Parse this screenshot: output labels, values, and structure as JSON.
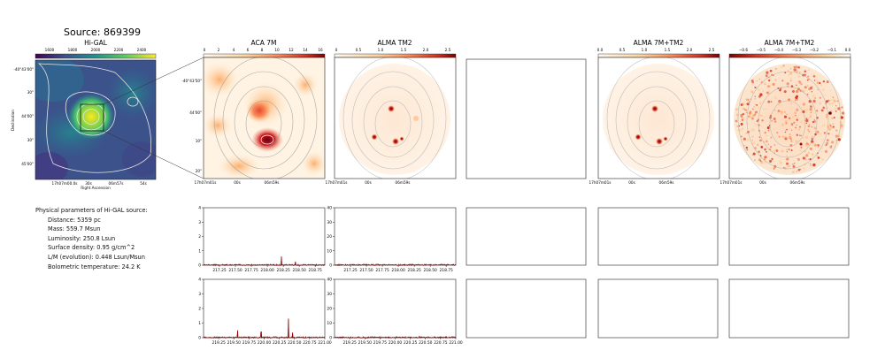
{
  "header": {
    "title": "Source: 869399"
  },
  "panels": {
    "higal": {
      "title": "Hi-GAL",
      "xlabel": "Right Ascension",
      "ylabel": "Declination",
      "cbar_ticks": [
        "1600",
        "1800",
        "2000",
        "2200",
        "2400"
      ],
      "xticks": [
        "17h07m00.0s",
        "30s",
        "06m57s",
        "54s"
      ],
      "yticks": [
        "-40°43'00\"",
        "30\"",
        "44'00\"",
        "30\"",
        "45'00\""
      ]
    },
    "aca": {
      "title": "ACA 7M",
      "cbar_ticks": [
        "0",
        "2",
        "4",
        "6",
        "8",
        "10",
        "12",
        "14",
        "16"
      ],
      "xticks": [
        "17h07m01s",
        "00s",
        "06m59s"
      ],
      "yticks": [
        "-40°43'50\"",
        "44'00\"",
        "10\"",
        "20\""
      ]
    },
    "tm2": {
      "title": "ALMA TM2",
      "cbar_ticks": [
        "0",
        "0.5",
        "1.0",
        "1.5",
        "2.0",
        "2.5"
      ],
      "xticks": [
        "17h07m01s",
        "00s",
        "06m59s"
      ]
    },
    "comb": {
      "title": "ALMA 7M+TM2",
      "cbar_ticks": [
        "0.0",
        "0.5",
        "1.0",
        "1.5",
        "2.0",
        "2.5"
      ],
      "xticks": [
        "17h07m01s",
        "00s",
        "06m59s"
      ]
    },
    "comb2": {
      "title": "ALMA 7M+TM2",
      "cbar_ticks": [
        "−0.6",
        "−0.5",
        "−0.4",
        "−0.3",
        "−0.2",
        "−0.1",
        "0.0"
      ],
      "xticks": [
        "17h07m01s",
        "00s",
        "06m59s"
      ]
    }
  },
  "params": {
    "heading": "Physical parameters of Hi-GAL source:",
    "lines": [
      "Distance: 5359 pc",
      "Mass: 559.7 Msun",
      "Luminosity: 250.8 Lsun",
      "Surface density: 0.95 g/cm^2",
      "L/M (evolution): 0.448 Lsun/Msun",
      "Bolometric temperature: 24.2 K"
    ]
  },
  "chart_data": [
    {
      "type": "line",
      "id": "spec-aca-low",
      "xlim": [
        217.0,
        218.9
      ],
      "ylim": [
        0,
        4
      ],
      "xticks": [
        217.25,
        217.5,
        217.75,
        218.0,
        218.25,
        218.5,
        218.75
      ],
      "yticks": [
        0,
        1,
        2,
        3,
        4
      ],
      "peaks": [
        {
          "x": 218.22,
          "y": 0.6
        },
        {
          "x": 218.44,
          "y": 0.25
        }
      ]
    },
    {
      "type": "line",
      "id": "spec-tm2-low",
      "xlim": [
        217.0,
        218.9
      ],
      "ylim": [
        0,
        40
      ],
      "xticks": [
        217.25,
        217.5,
        217.75,
        218.0,
        218.25,
        218.5,
        218.75
      ],
      "yticks": [
        0,
        10,
        20,
        30,
        40
      ],
      "peaks": [
        {
          "x": 218.22,
          "y": 0.8
        }
      ]
    },
    {
      "type": "line",
      "id": "spec-aca-high",
      "xlim": [
        219.0,
        221.0
      ],
      "ylim": [
        0,
        4
      ],
      "xticks": [
        219.25,
        219.5,
        219.75,
        220.0,
        220.25,
        220.5,
        220.75,
        221.0
      ],
      "yticks": [
        0,
        1,
        2,
        3,
        4
      ],
      "peaks": [
        {
          "x": 219.56,
          "y": 0.5
        },
        {
          "x": 219.95,
          "y": 0.4
        },
        {
          "x": 220.4,
          "y": 1.3
        },
        {
          "x": 220.47,
          "y": 0.35
        }
      ]
    },
    {
      "type": "line",
      "id": "spec-tm2-high",
      "xlim": [
        219.0,
        221.0
      ],
      "ylim": [
        0,
        40
      ],
      "xticks": [
        219.25,
        219.5,
        219.75,
        220.0,
        220.25,
        220.5,
        220.75,
        221.0
      ],
      "yticks": [
        0,
        10,
        20,
        30,
        40
      ],
      "peaks": [
        {
          "x": 220.4,
          "y": 1.0
        }
      ]
    }
  ]
}
